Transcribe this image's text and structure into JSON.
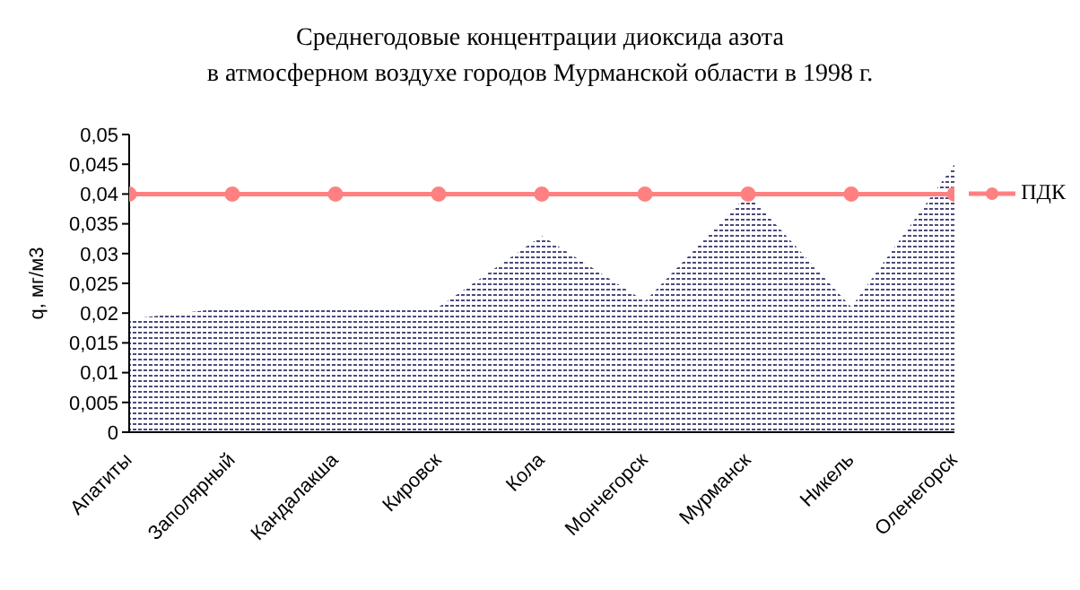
{
  "chart_data": {
    "type": "area",
    "title": "Среднегодовые концентрации диоксида азота\nв атмосферном воздухе городов Мурманской области в 1998 г.",
    "ylabel": "q, мг/м3",
    "categories": [
      "Апатиты",
      "Заполярный",
      "Кандалакша",
      "Кировск",
      "Кола",
      "Мончегорск",
      "Мурманск",
      "Никель",
      "Оленегорск"
    ],
    "series": [
      {
        "color": "#4b4b7d",
        "values": [
          0.019,
          0.021,
          0.021,
          0.021,
          0.033,
          0.022,
          0.04,
          0.021,
          0.045
        ]
      },
      {
        "type": "line",
        "name": "ПДК",
        "color": "#ff8080",
        "marker": "circle",
        "values": [
          0.04,
          0.04,
          0.04,
          0.04,
          0.04,
          0.04,
          0.04,
          0.04,
          0.04
        ]
      }
    ],
    "ylim": [
      0,
      0.05
    ],
    "yticks": [
      0,
      {
        "value": 0.005,
        "label": "0,005"
      },
      {
        "value": 0.01,
        "label": "0,01"
      },
      {
        "value": 0.015,
        "label": "0,015"
      },
      {
        "value": 0.02,
        "label": "0,02"
      },
      {
        "value": 0.025,
        "label": "0,025"
      },
      {
        "value": 0.03,
        "label": "0,03"
      },
      {
        "value": 0.035,
        "label": "0,035"
      },
      {
        "value": 0.04,
        "label": "0,04"
      },
      {
        "value": 0.045,
        "label": "0,045"
      },
      {
        "value": 0.05,
        "label": "0,05"
      }
    ],
    "grid": false,
    "legend": "right"
  }
}
